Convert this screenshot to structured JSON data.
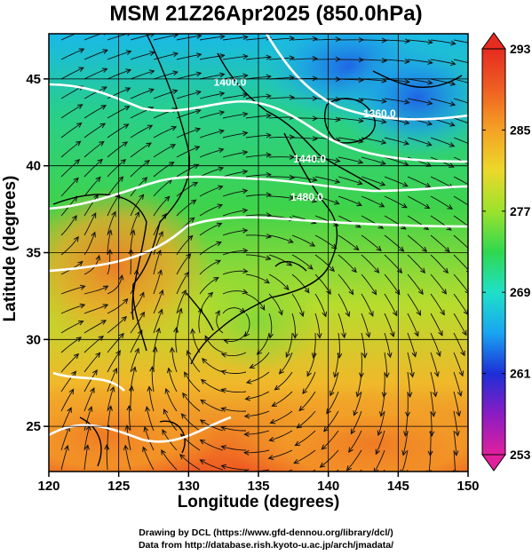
{
  "title": "MSM 21Z26Apr2025 (850.0hPa)",
  "xlabel": "Longitude (degrees)",
  "ylabel": "Latitude (degrees)",
  "x_ticks": [
    "120",
    "125",
    "130",
    "135",
    "140",
    "145",
    "150"
  ],
  "y_ticks": [
    "25",
    "30",
    "35",
    "40",
    "45"
  ],
  "x_tick_values": [
    120,
    125,
    130,
    135,
    140,
    145,
    150
  ],
  "y_tick_values": [
    25,
    30,
    35,
    40,
    45
  ],
  "xlim": [
    120,
    150
  ],
  "ylim": [
    22.4,
    47.6
  ],
  "colorbar": {
    "labels": [
      "293",
      "285",
      "277",
      "269",
      "261",
      "253"
    ],
    "values": [
      293,
      285,
      277,
      269,
      261,
      253
    ],
    "range": [
      253,
      293
    ],
    "colors": [
      "#e0209c",
      "#8a1cc4",
      "#1c2fd6",
      "#19a5f2",
      "#1fe0c8",
      "#2fd84f",
      "#9be22d",
      "#ecd82a",
      "#f5a225",
      "#ef5f22",
      "#e62b20"
    ]
  },
  "contours": [
    {
      "label": "1400.0",
      "lon": 131.8,
      "lat": 44.6
    },
    {
      "label": "1360.0",
      "lon": 142.5,
      "lat": 42.8
    },
    {
      "label": "1440.0",
      "lon": 137.5,
      "lat": 40.2
    },
    {
      "label": "1480.0",
      "lon": 137.3,
      "lat": 38.0
    }
  ],
  "credits": {
    "line1": "Drawing by DCL (https://www.gfd-dennou.org/library/dcl/)",
    "line2": "Data from http://database.rish.kyoto-u.ac.jp/arch/jmadata/"
  }
}
